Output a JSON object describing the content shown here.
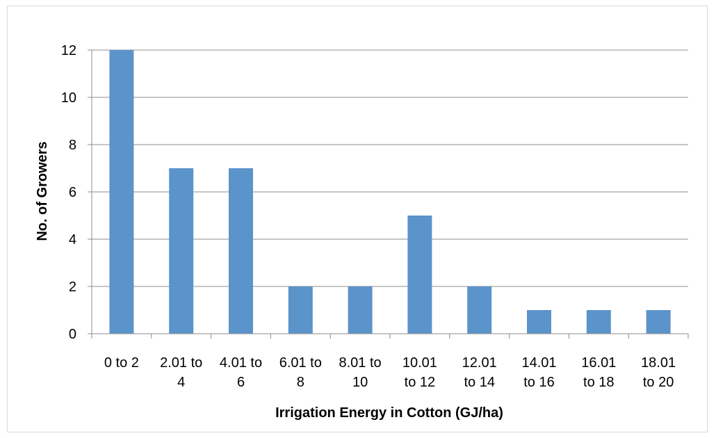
{
  "chart_data": {
    "type": "bar",
    "categories": [
      [
        "0 to 2"
      ],
      [
        "2.01 to",
        "4"
      ],
      [
        "4.01 to",
        "6"
      ],
      [
        "6.01 to",
        "8"
      ],
      [
        "8.01 to",
        "10"
      ],
      [
        "10.01",
        "to 12"
      ],
      [
        "12.01",
        "to 14"
      ],
      [
        "14.01",
        "to 16"
      ],
      [
        "16.01",
        "to 18"
      ],
      [
        "18.01",
        "to 20"
      ]
    ],
    "values": [
      12,
      7,
      7,
      2,
      2,
      5,
      2,
      1,
      1,
      1
    ],
    "title": "",
    "xlabel": "Irrigation Energy in Cotton (GJ/ha)",
    "ylabel": "No. of Growers",
    "ylim": [
      0,
      12
    ],
    "yticks": [
      0,
      2,
      4,
      6,
      8,
      10,
      12
    ],
    "grid": true,
    "legend": "none",
    "bar_color": "#5b93cb",
    "grid_color": "#8c8c8c"
  }
}
